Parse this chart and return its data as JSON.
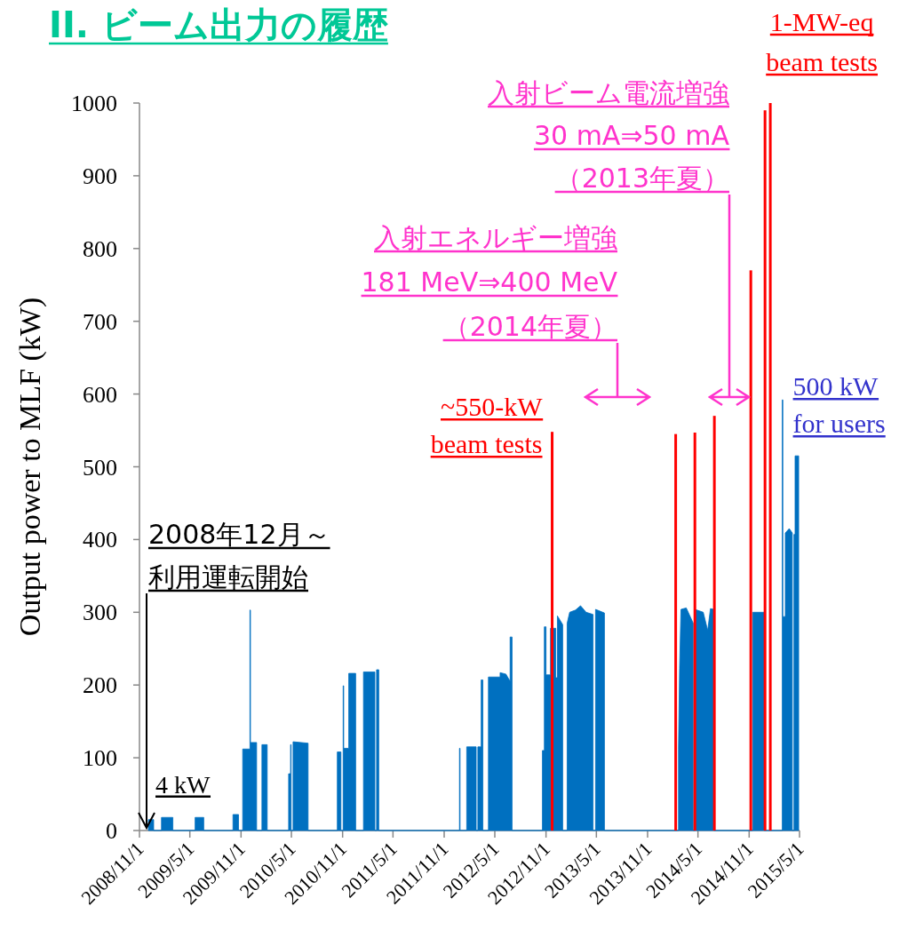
{
  "chart_data": {
    "type": "area",
    "title": "II. ビーム出力の履歴",
    "ylabel": "Output power to MLF (kW)",
    "xlim": [
      "2008-11-01",
      "2015-05-01"
    ],
    "xticks": [
      {
        "value": "2008-11-01",
        "label": "2008/11/1"
      },
      {
        "value": "2009-05-01",
        "label": "2009/5/1"
      },
      {
        "value": "2009-11-01",
        "label": "2009/11/1"
      },
      {
        "value": "2010-05-01",
        "label": "2010/5/1"
      },
      {
        "value": "2010-11-01",
        "label": "2010/11/1"
      },
      {
        "value": "2011-05-01",
        "label": "2011/5/1"
      },
      {
        "value": "2011-11-01",
        "label": "2011/11/1"
      },
      {
        "value": "2012-05-01",
        "label": "2012/5/1"
      },
      {
        "value": "2012-11-01",
        "label": "2012/11/1"
      },
      {
        "value": "2013-05-01",
        "label": "2013/5/1"
      },
      {
        "value": "2013-11-01",
        "label": "2013/11/1"
      },
      {
        "value": "2014-05-01",
        "label": "2014/5/1"
      },
      {
        "value": "2014-11-01",
        "label": "2014/11/1"
      },
      {
        "value": "2015-05-01",
        "label": "2015/5/1"
      }
    ],
    "ylim": [
      0,
      1000
    ],
    "yticks": [
      0,
      100,
      200,
      300,
      400,
      500,
      600,
      700,
      800,
      900,
      1000
    ],
    "series": [
      {
        "color": "#0070c0",
        "x": [
          "2008-12-03",
          "2008-12-03",
          "2008-12-22",
          "2008-12-22",
          "2009-01-19",
          "2009-01-19",
          "2009-03-01",
          "2009-03-01",
          "2009-05-20",
          "2009-05-20",
          "2009-06-20",
          "2009-06-20",
          "2009-10-03",
          "2009-10-03",
          "2009-10-23",
          "2009-10-23",
          "2009-11-07",
          "2009-11-07",
          "2009-12-03",
          "2009-12-03",
          "2009-12-05",
          "2009-12-05",
          "2009-12-27",
          "2009-12-27",
          "2010-01-15",
          "2010-01-15",
          "2010-02-03",
          "2010-02-03",
          "2010-04-21",
          "2010-04-21",
          "2010-04-28",
          "2010-04-28",
          "2010-04-30",
          "2010-04-30",
          "2010-05-07",
          "2010-05-07",
          "2010-06-30",
          "2010-06-30",
          "2010-10-13",
          "2010-10-13",
          "2010-10-26",
          "2010-10-26",
          "2010-11-03",
          "2010-11-03",
          "2010-11-05",
          "2010-11-05",
          "2010-11-23",
          "2010-11-23",
          "2010-12-18",
          "2010-12-18",
          "2011-01-15",
          "2011-01-15",
          "2011-02-25",
          "2011-02-25",
          "2011-03-03",
          "2011-03-03",
          "2011-03-11",
          "2011-03-11",
          "2011-12-26",
          "2011-12-26",
          "2011-12-28",
          "2011-12-28",
          "2012-01-21",
          "2012-01-21",
          "2012-02-24",
          "2012-02-24",
          "2012-03-01",
          "2012-03-01",
          "2012-03-13",
          "2012-03-13",
          "2012-03-19",
          "2012-03-19",
          "2012-04-08",
          "2012-04-08",
          "2012-05-20",
          "2012-05-20",
          "2012-06-10",
          "2012-06-25",
          "2012-06-25",
          "2012-07-02",
          "2012-07-02",
          "2012-10-19",
          "2012-10-19",
          "2012-10-26",
          "2012-10-26",
          "2012-11-01",
          "2012-11-01",
          "2012-11-17",
          "2012-11-17",
          "2012-12-06",
          "2012-12-06",
          "2012-12-12",
          "2012-12-12",
          "2012-12-31",
          "2012-12-31",
          "2013-01-16",
          "2013-01-16",
          "2013-01-25",
          "2013-02-15",
          "2013-03-05",
          "2013-03-25",
          "2013-04-19",
          "2013-04-19",
          "2013-04-28",
          "2013-04-28",
          "2013-05-30",
          "2013-05-30",
          "2014-02-20",
          "2014-02-20",
          "2014-02-24",
          "2014-03-01",
          "2014-03-20",
          "2014-04-14",
          "2014-04-14",
          "2014-04-20",
          "2014-04-20",
          "2014-05-20",
          "2014-06-05",
          "2014-06-15",
          "2014-06-28",
          "2014-06-28",
          "2014-11-14",
          "2014-11-14",
          "2014-12-25",
          "2014-12-25",
          "2015-02-28",
          "2015-02-28",
          "2015-03-02",
          "2015-03-02",
          "2015-03-11",
          "2015-03-11",
          "2015-03-25",
          "2015-04-05",
          "2015-04-05",
          "2015-04-11",
          "2015-04-11",
          "2015-04-15",
          "2015-04-15",
          "2015-04-28",
          "2015-04-28"
        ],
        "values": [
          0,
          15,
          15,
          0,
          0,
          18,
          18,
          0,
          0,
          18,
          18,
          0,
          0,
          22,
          22,
          0,
          0,
          112,
          112,
          303,
          303,
          121,
          121,
          0,
          0,
          118,
          118,
          0,
          0,
          78,
          78,
          118,
          118,
          0,
          0,
          122,
          120,
          0,
          0,
          108,
          108,
          0,
          0,
          199,
          199,
          113,
          113,
          216,
          216,
          0,
          0,
          218,
          218,
          0,
          0,
          221,
          221,
          0,
          0,
          113,
          113,
          0,
          0,
          115,
          115,
          0,
          0,
          115,
          115,
          207,
          207,
          0,
          0,
          211,
          211,
          217,
          215,
          205,
          266,
          266,
          0,
          0,
          110,
          110,
          280,
          280,
          214,
          214,
          278,
          278,
          210,
          210,
          295,
          283,
          0,
          0,
          285,
          300,
          303,
          309,
          300,
          297,
          0,
          0,
          304,
          299,
          0,
          0,
          112,
          223,
          304,
          306,
          285,
          0,
          0,
          304,
          300,
          275,
          305,
          304,
          0,
          0,
          300,
          300,
          0,
          0,
          592,
          592,
          294,
          294,
          409,
          415,
          409,
          0,
          0,
          407,
          407,
          515,
          515,
          0
        ]
      },
      {
        "type": "bar",
        "color": "#ff0000",
        "x": [
          "2012-11-23",
          "2014-02-10",
          "2014-04-20",
          "2014-06-29",
          "2014-11-07",
          "2014-12-28",
          "2015-01-16"
        ],
        "values": [
          548,
          545,
          547,
          570,
          770,
          990,
          1000
        ]
      }
    ],
    "annotations": [
      "2008年12月～利用運転開始",
      {
        "text": "4 kW",
        "x": "2008-12-03",
        "y": 15
      },
      {
        "text": "~550-kW\nbeam tests",
        "x": "2012-11-23",
        "y": 548
      },
      {
        "text": "1-MW-eq\nbeam tests",
        "x": "2015-01-16",
        "y": 1000
      },
      {
        "text": "500 kW\nfor users",
        "x": "2015-02-28",
        "y": 592
      },
      "入射エネルギー増強\n181 MeV⇒400 MeV\n（2014年夏）",
      "入射ビーム電流増強\n30 mA⇒50 mA\n（2013年夏）"
    ]
  }
}
